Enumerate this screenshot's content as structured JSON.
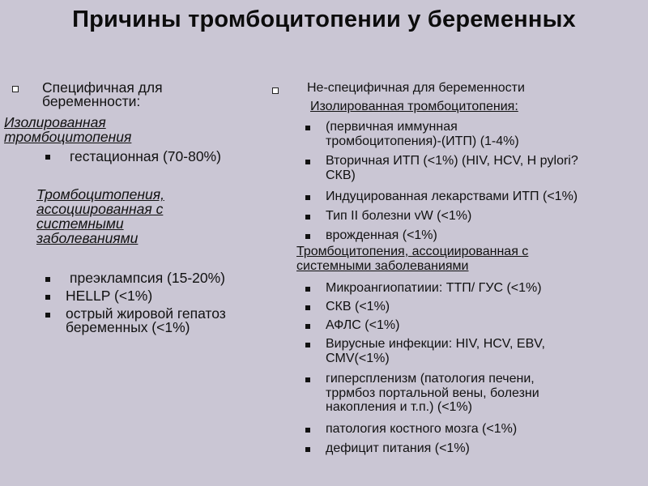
{
  "title": "Причины тромбоцитопении у беременных",
  "left": {
    "heading": "Специфичная для\nбеременности:",
    "group1_title": "Изолированная\nтромбоцитопения",
    "group1_items": [
      "гестационная (70-80%)"
    ],
    "group2_title": "Тромбоцитопения,\nассоциированная с\nсистемными\nзаболеваниями",
    "group2_items": [
      "преэклампсия (15-20%)",
      "HELLP (<1%)",
      "острый жировой гепатоз\nбеременных  (<1%)"
    ]
  },
  "right": {
    "heading": "Не-специфичная для беременности",
    "group1_title": "Изолированная тромбоцитопения:",
    "group1_items": [
      " (первичная иммунная\nтромбоцитопения)-(ИТП)   (1-4%)",
      "Вторичная ИТП (<1%) (HIV, HCV, H pylori?\nСКВ)",
      "Индуцированная лекарствами  ИТП  (<1%)",
      "Тип II  болезни vW (<1%)",
      "врожденная (<1%)"
    ],
    "group2_title": "Тромбоцитопения, ассоциированная с\nсистемными  заболеваниями",
    "group2_items": [
      "Микроангиопатиии: ТТП/ ГУС (<1%)",
      "СКВ (<1%)",
      "АФЛС (<1%)",
      "Вирусные инфекции: HIV, HCV, EBV,\nCMV(<1%)",
      " гиперспленизм (патология печени,\nтррмбоз портальной вены, болезни\nнакопления и т.п.) (<1%)",
      "патология костного мозга (<1%)",
      " дефицит питания (<1%)"
    ]
  }
}
